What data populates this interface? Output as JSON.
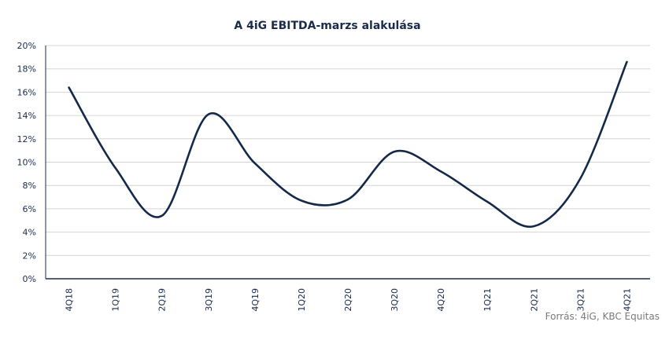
{
  "chart_data": {
    "type": "line",
    "title": "A 4iG EBITDA-marzs alakulása",
    "xlabel": "",
    "ylabel": "",
    "categories": [
      "4Q18",
      "1Q19",
      "2Q19",
      "3Q19",
      "4Q19",
      "1Q20",
      "2Q20",
      "3Q20",
      "4Q20",
      "1Q21",
      "2Q21",
      "3Q21",
      "4Q21"
    ],
    "values": [
      16.4,
      9.5,
      5.4,
      14.1,
      9.9,
      6.7,
      6.8,
      10.9,
      9.2,
      6.6,
      4.5,
      8.6,
      18.6
    ],
    "yticks": [
      "0%",
      "2%",
      "4%",
      "6%",
      "8%",
      "10%",
      "12%",
      "14%",
      "16%",
      "18%",
      "20%"
    ],
    "ylim": [
      0,
      20
    ],
    "grid": true,
    "legend": "none",
    "line_color": "#14294a"
  },
  "source": "Forrás: 4iG, KBC Equitas"
}
